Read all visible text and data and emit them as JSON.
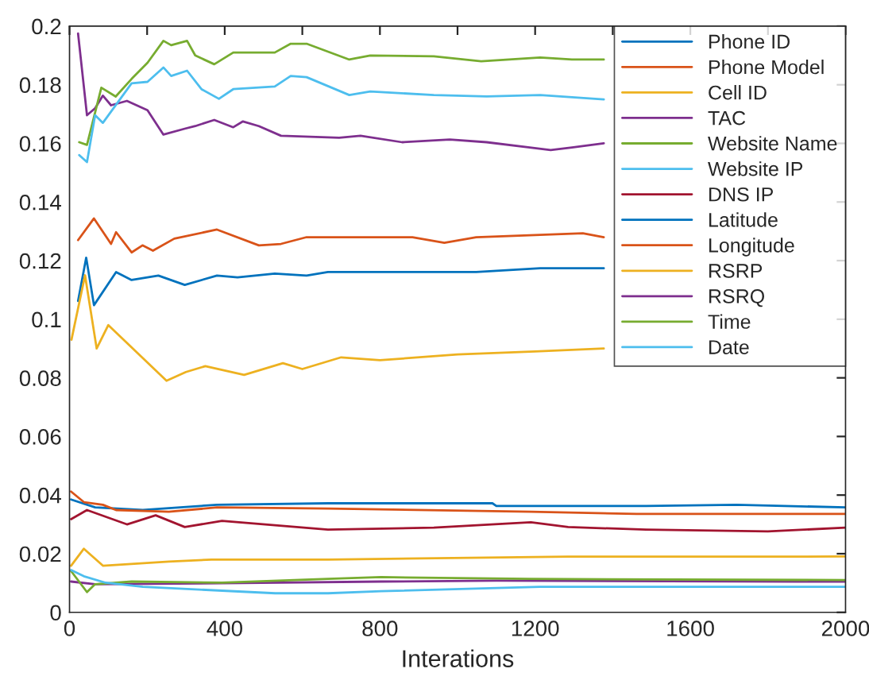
{
  "chart_data": {
    "type": "line",
    "xlabel": "Interations",
    "xlim": [
      0,
      2000
    ],
    "ylim": [
      0,
      0.2
    ],
    "xticks": [
      0,
      {
        "value": 200,
        "label": null
      },
      400,
      {
        "value": 600,
        "label": null
      },
      800,
      {
        "value": 1000,
        "label": null
      },
      1200,
      {
        "value": 1400,
        "label": null
      },
      1600,
      {
        "value": 1800,
        "label": null
      },
      2000
    ],
    "yticks": [
      0,
      0.02,
      0.04,
      0.06,
      0.08,
      0.1,
      0.12,
      0.14,
      0.16,
      0.18,
      0.2
    ],
    "grid": false,
    "legend": "top right",
    "marker": "none",
    "line_style": "solid",
    "series": [
      {
        "name": "Phone ID",
        "color": "#0072bd",
        "x": [
          22,
          43,
          63,
          120,
          160,
          229,
          297,
          380,
          433,
          529,
          611,
          666,
          939,
          1048,
          1213,
          1377
        ],
        "values": [
          0.1062,
          0.121,
          0.1048,
          0.1161,
          0.1134,
          0.1149,
          0.1117,
          0.1149,
          0.1143,
          0.1156,
          0.1149,
          0.1161,
          0.1161,
          0.1161,
          0.1174,
          0.1174
        ]
      },
      {
        "name": "Phone Model",
        "color": "#d95319",
        "x": [
          22,
          63,
          107,
          120,
          160,
          188,
          215,
          270,
          380,
          488,
          545,
          611,
          695,
          884,
          966,
          1048,
          1323,
          1377
        ],
        "values": [
          0.127,
          0.1344,
          0.1257,
          0.1297,
          0.1228,
          0.1252,
          0.1234,
          0.1275,
          0.1306,
          0.1252,
          0.1257,
          0.128,
          0.128,
          0.128,
          0.1261,
          0.128,
          0.1293,
          0.128
        ]
      },
      {
        "name": "Cell ID",
        "color": "#edb120",
        "x": [
          5,
          40,
          70,
          100,
          250,
          300,
          350,
          450,
          550,
          600,
          700,
          800,
          1000,
          1200,
          1377
        ],
        "values": [
          0.093,
          0.115,
          0.09,
          0.098,
          0.079,
          0.082,
          0.084,
          0.081,
          0.085,
          0.083,
          0.087,
          0.086,
          0.088,
          0.089,
          0.09
        ]
      },
      {
        "name": "TAC",
        "color": "#7e2f8e",
        "x": [
          22,
          45,
          66,
          86,
          107,
          148,
          201,
          242,
          297,
          324,
          373,
          422,
          447,
          488,
          545,
          695,
          750,
          857,
          980,
          1075,
          1186,
          1240,
          1295,
          1377
        ],
        "values": [
          0.1975,
          0.1696,
          0.172,
          0.1763,
          0.173,
          0.1745,
          0.1713,
          0.163,
          0.165,
          0.1659,
          0.168,
          0.1655,
          0.1675,
          0.1659,
          0.1626,
          0.1619,
          0.1626,
          0.1604,
          0.1613,
          0.1604,
          0.1586,
          0.1577,
          0.1586,
          0.16
        ]
      },
      {
        "name": "Website Name",
        "color": "#77ac30",
        "x": [
          25,
          45,
          82,
          119,
          160,
          201,
          242,
          262,
          303,
          324,
          373,
          422,
          529,
          570,
          611,
          721,
          775,
          939,
          1061,
          1213,
          1295,
          1377
        ],
        "values": [
          0.1604,
          0.1595,
          0.179,
          0.176,
          0.182,
          0.1875,
          0.195,
          0.1935,
          0.195,
          0.19,
          0.187,
          0.191,
          0.191,
          0.194,
          0.194,
          0.1886,
          0.19,
          0.1897,
          0.188,
          0.1893,
          0.1886,
          0.1886
        ]
      },
      {
        "name": "Website IP",
        "color": "#4dbeee",
        "x": [
          25,
          45,
          66,
          86,
          160,
          201,
          242,
          262,
          303,
          340,
          385,
          422,
          529,
          570,
          611,
          721,
          775,
          939,
          1075,
          1213,
          1377
        ],
        "values": [
          0.156,
          0.1536,
          0.1696,
          0.167,
          0.1805,
          0.181,
          0.1859,
          0.183,
          0.1848,
          0.1785,
          0.1752,
          0.1785,
          0.1794,
          0.183,
          0.1826,
          0.1765,
          0.1777,
          0.1765,
          0.176,
          0.1765,
          0.175
        ]
      },
      {
        "name": "DNS IP",
        "color": "#a2142f",
        "x": [
          4,
          45,
          148,
          222,
          297,
          393,
          666,
          939,
          1189,
          1285,
          1486,
          1800,
          2000
        ],
        "values": [
          0.0318,
          0.0349,
          0.03,
          0.0331,
          0.0291,
          0.0312,
          0.0282,
          0.0289,
          0.0307,
          0.0291,
          0.0282,
          0.0276,
          0.0289
        ]
      },
      {
        "name": "Latitude",
        "color": "#0072bd",
        "x": [
          4,
          66,
          189,
          380,
          666,
          1090,
          1100,
          1486,
          1719,
          2000
        ],
        "values": [
          0.0385,
          0.0358,
          0.0349,
          0.0367,
          0.0372,
          0.0372,
          0.0363,
          0.0363,
          0.0367,
          0.0358
        ]
      },
      {
        "name": "Longitude",
        "color": "#d95319",
        "x": [
          4,
          37,
          86,
          120,
          256,
          380,
          666,
          1189,
          1462,
          2000
        ],
        "values": [
          0.0412,
          0.0376,
          0.0367,
          0.0349,
          0.0343,
          0.0358,
          0.0354,
          0.0343,
          0.0336,
          0.0336
        ]
      },
      {
        "name": "RSRP",
        "color": "#edb120",
        "x": [
          4,
          37,
          86,
          256,
          366,
          666,
          1285,
          1871,
          2000
        ],
        "values": [
          0.0159,
          0.0217,
          0.0159,
          0.0173,
          0.018,
          0.018,
          0.019,
          0.019,
          0.0191
        ]
      },
      {
        "name": "RSRQ",
        "color": "#7e2f8e",
        "x": [
          4,
          66,
          393,
          803,
          1100,
          1871,
          2000
        ],
        "values": [
          0.0105,
          0.0096,
          0.0099,
          0.0105,
          0.0108,
          0.0105,
          0.0105
        ]
      },
      {
        "name": "Time",
        "color": "#77ac30",
        "x": [
          4,
          45,
          66,
          160,
          393,
          666,
          803,
          1186,
          2000
        ],
        "values": [
          0.0141,
          0.0069,
          0.0096,
          0.0105,
          0.0101,
          0.0114,
          0.012,
          0.0114,
          0.011
        ]
      },
      {
        "name": "Date",
        "color": "#4dbeee",
        "x": [
          4,
          37,
          93,
          189,
          530,
          666,
          803,
          1213,
          2000
        ],
        "values": [
          0.0144,
          0.0123,
          0.0101,
          0.0087,
          0.0065,
          0.0065,
          0.0072,
          0.0087,
          0.0087
        ]
      }
    ]
  }
}
